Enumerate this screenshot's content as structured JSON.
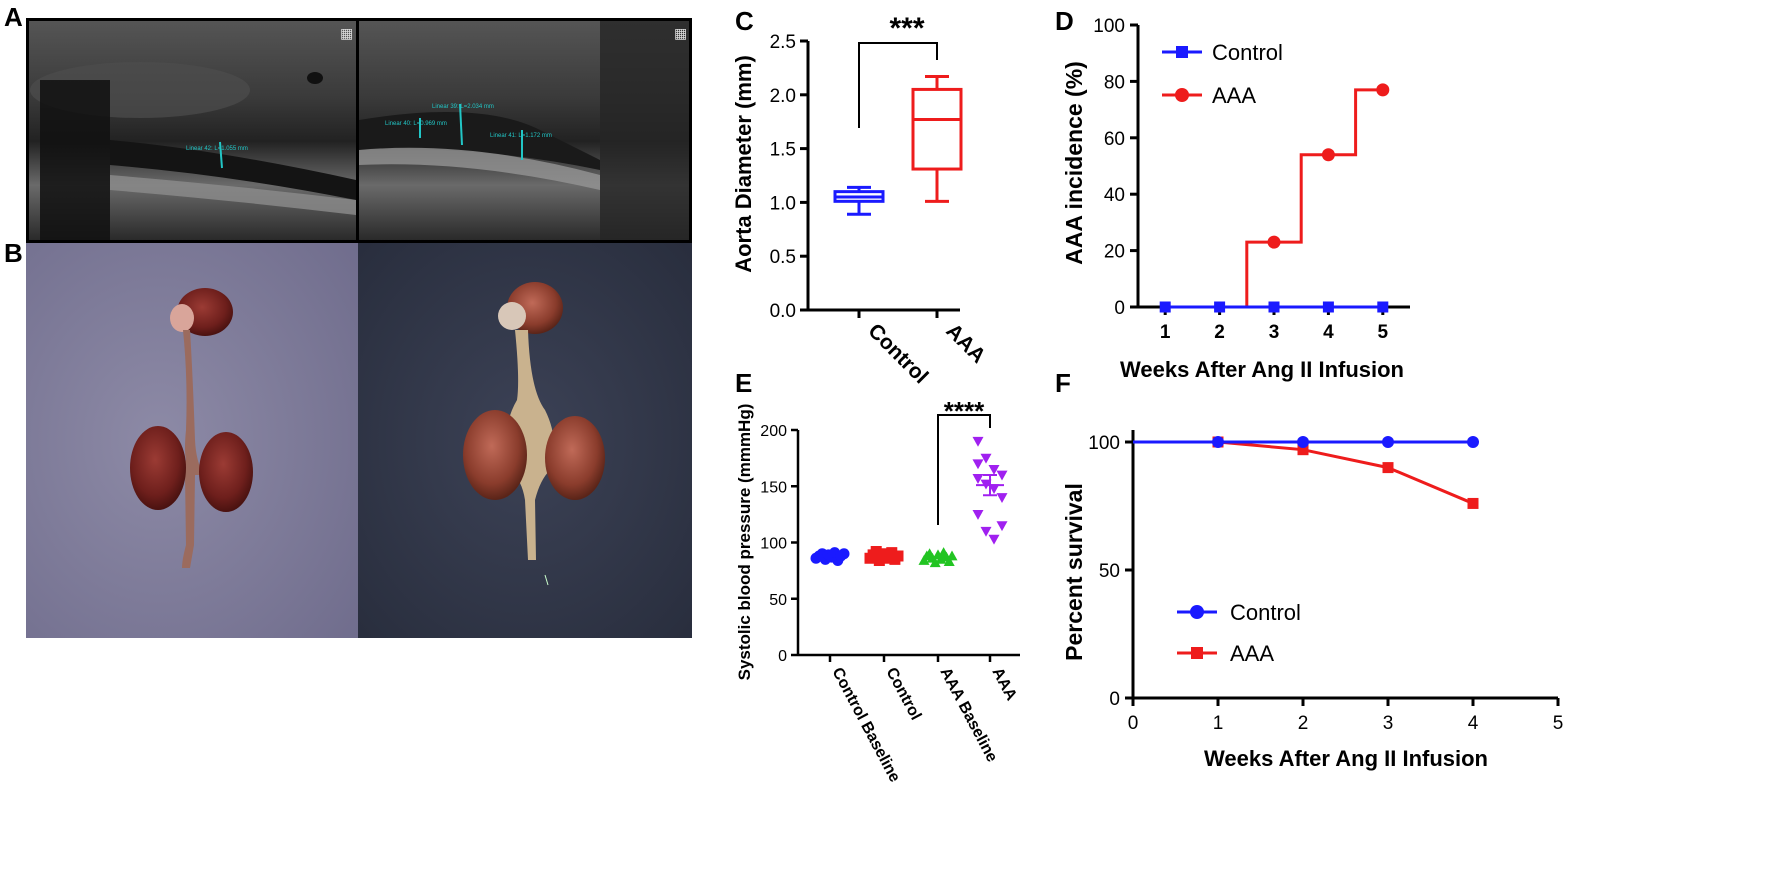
{
  "panels": {
    "A": "A",
    "B": "B",
    "C": "C",
    "D": "D",
    "E": "E",
    "F": "F"
  },
  "ultrasound": {
    "left_label": "Linear 42: L=1.055 mm",
    "right_labels": [
      "Linear 40: L=0.969 mm",
      "Linear 39: L=2.034 mm",
      "Linear 41: L=1.172 mm"
    ]
  },
  "colors": {
    "control": "#1a1aff",
    "aaa": "#ee1c1c",
    "aaa_baseline": "#22c422",
    "aaa_e": "#a020f0"
  },
  "chart_data": [
    {
      "panel": "C",
      "type": "box",
      "categories": [
        "Control",
        "AAA"
      ],
      "ylabel": "Aorta Diameter (mm)",
      "ylim": [
        0.0,
        2.5
      ],
      "yticks": [
        "0.0",
        "0.5",
        "1.0",
        "1.5",
        "2.0",
        "2.5"
      ],
      "boxes": [
        {
          "name": "Control",
          "min": 0.89,
          "q1": 1.01,
          "median": 1.05,
          "q3": 1.1,
          "max": 1.14
        },
        {
          "name": "AAA",
          "min": 1.01,
          "q1": 1.31,
          "median": 1.77,
          "q3": 2.05,
          "max": 2.17
        }
      ],
      "annotation": "***"
    },
    {
      "panel": "D",
      "type": "line",
      "xlabel": "Weeks After Ang II Infusion",
      "ylabel": "AAA incidence (%)",
      "x": [
        1,
        2,
        3,
        4,
        5
      ],
      "xlim": [
        0.5,
        5.5
      ],
      "ylim": [
        0,
        100
      ],
      "yticks": [
        "0",
        "20",
        "40",
        "60",
        "80",
        "100"
      ],
      "xticks": [
        "1",
        "2",
        "3",
        "4",
        "5"
      ],
      "legend": "top-left",
      "series": [
        {
          "name": "Control",
          "values": [
            0,
            0,
            0,
            0,
            0
          ],
          "marker": "square"
        },
        {
          "name": "AAA",
          "values": [
            0,
            0,
            23,
            54,
            77
          ],
          "marker": "circle"
        }
      ]
    },
    {
      "panel": "E",
      "type": "scatter",
      "ylabel": "Systolic blood pressure (mmmHg)",
      "categories": [
        "Control Baseline",
        "Control",
        "AAA Baseline",
        "AAA"
      ],
      "ylim": [
        0,
        200
      ],
      "yticks": [
        "0",
        "50",
        "100",
        "150",
        "200"
      ],
      "series": [
        {
          "name": "Control Baseline",
          "marker": "circle",
          "values": [
            86,
            88,
            90,
            85,
            89,
            87,
            91,
            84,
            88,
            90
          ],
          "mean": 88
        },
        {
          "name": "Control",
          "marker": "square",
          "values": [
            86,
            89,
            92,
            84,
            88,
            90,
            86,
            91,
            85,
            88
          ],
          "mean": 88
        },
        {
          "name": "AAA Baseline",
          "marker": "triangle-up",
          "values": [
            84,
            88,
            90,
            86,
            82,
            89,
            85,
            91,
            87,
            83,
            88
          ],
          "mean": 87
        },
        {
          "name": "AAA",
          "marker": "triangle-down",
          "values": [
            190,
            175,
            165,
            160,
            157,
            152,
            148,
            140,
            125,
            110,
            103,
            115,
            170
          ],
          "mean": 151,
          "sem": 9
        }
      ],
      "annotation": "****"
    },
    {
      "panel": "F",
      "type": "line",
      "xlabel": "Weeks After Ang II Infusion",
      "ylabel": "Percent survival",
      "xlim": [
        0,
        5
      ],
      "ylim": [
        0,
        100
      ],
      "xticks": [
        "0",
        "1",
        "2",
        "3",
        "4",
        "5"
      ],
      "yticks": [
        "0",
        "50",
        "100"
      ],
      "legend": "bottom-left",
      "series": [
        {
          "name": "Control",
          "marker": "circle",
          "x": [
            0,
            1,
            2,
            3,
            4
          ],
          "values": [
            100,
            100,
            100,
            100,
            100
          ]
        },
        {
          "name": "AAA",
          "marker": "square",
          "x": [
            0,
            1,
            2,
            3,
            4
          ],
          "values": [
            100,
            100,
            97,
            90,
            76
          ]
        }
      ]
    }
  ]
}
